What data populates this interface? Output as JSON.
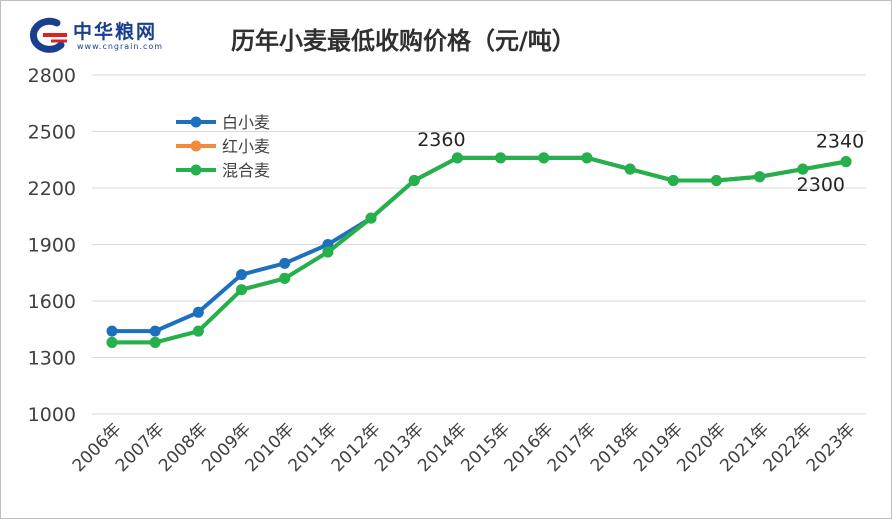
{
  "logo": {
    "text": "中华粮网",
    "url": "www.cngrain.com"
  },
  "chart_data": {
    "type": "line",
    "title": "历年小麦最低收购价格（元/吨）",
    "xlabel": "",
    "ylabel": "",
    "categories": [
      "2006年",
      "2007年",
      "2008年",
      "2009年",
      "2010年",
      "2011年",
      "2012年",
      "2013年",
      "2014年",
      "2015年",
      "2016年",
      "2017年",
      "2018年",
      "2019年",
      "2020年",
      "2021年",
      "2022年",
      "2023年"
    ],
    "ylim": [
      1000,
      2800
    ],
    "yticks": [
      1000,
      1300,
      1600,
      1900,
      2200,
      2500,
      2800
    ],
    "grid": true,
    "legend_position": "upper-left",
    "series": [
      {
        "name": "白小麦",
        "color": "#1f6fbf",
        "values": [
          1440,
          1440,
          1540,
          1740,
          1800,
          1900,
          2040,
          2240,
          2360,
          2360,
          2360,
          2360,
          2300,
          2240,
          2240,
          2260,
          2300,
          2340
        ]
      },
      {
        "name": "红小麦",
        "color": "#f28c3a",
        "values": [
          1380,
          1380,
          1440,
          1660,
          1720,
          1860,
          2040,
          2240,
          2360,
          2360,
          2360,
          2360,
          2300,
          2240,
          2240,
          2260,
          2300,
          2340
        ]
      },
      {
        "name": "混合麦",
        "color": "#22b14c",
        "values": [
          1380,
          1380,
          1440,
          1660,
          1720,
          1860,
          2040,
          2240,
          2360,
          2360,
          2360,
          2360,
          2300,
          2240,
          2240,
          2260,
          2300,
          2340
        ]
      }
    ],
    "annotations": [
      {
        "text": "2360",
        "x": "2014年",
        "y": 2360,
        "anchor": "above-left"
      },
      {
        "text": "2340",
        "x": "2023年",
        "y": 2340,
        "anchor": "above"
      },
      {
        "text": "2300",
        "x": "2022年",
        "y": 2300,
        "anchor": "below"
      }
    ]
  }
}
